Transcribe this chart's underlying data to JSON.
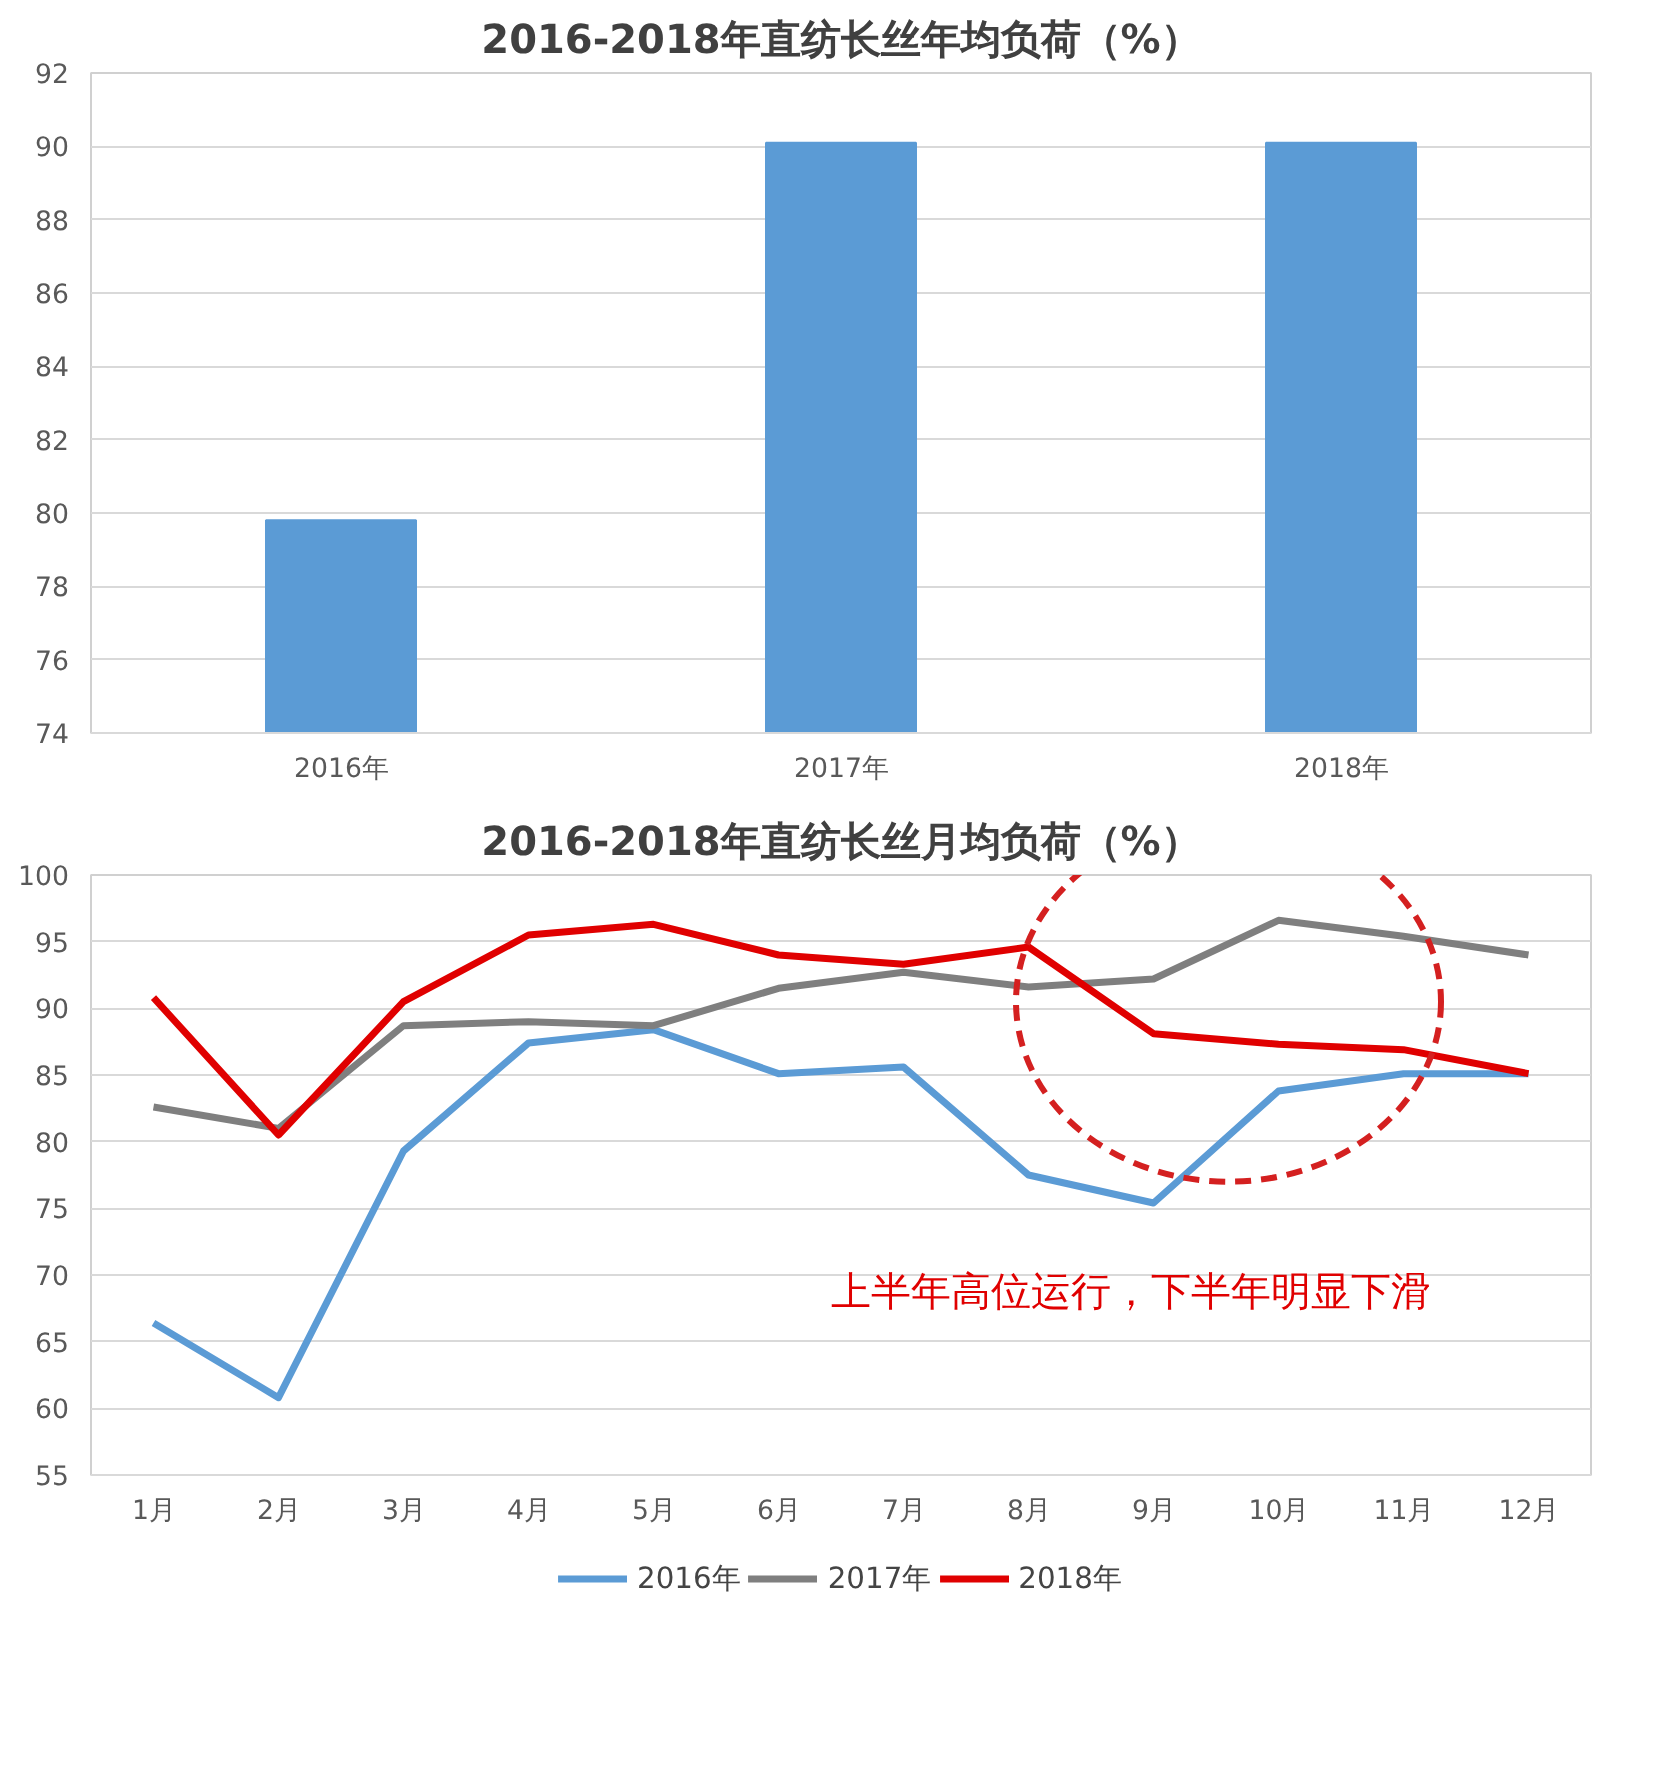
{
  "chart_data": [
    {
      "type": "bar",
      "title": "2016-2018年直纺长丝年均负荷（%）",
      "categories": [
        "2016年",
        "2017年",
        "2018年"
      ],
      "values": [
        79.8,
        90.1,
        90.1
      ],
      "color": "#5b9bd5",
      "ylim": [
        74,
        92
      ],
      "yticks": [
        74,
        76,
        78,
        80,
        82,
        84,
        86,
        88,
        90,
        92
      ],
      "grid": "y"
    },
    {
      "type": "line",
      "title": "2016-2018年直纺长丝月均负荷（%）",
      "categories": [
        "1月",
        "2月",
        "3月",
        "4月",
        "5月",
        "6月",
        "7月",
        "8月",
        "9月",
        "10月",
        "11月",
        "12月"
      ],
      "series": [
        {
          "name": "2016年",
          "color": "#5b9bd5",
          "values": [
            66.4,
            60.8,
            79.3,
            87.4,
            88.4,
            85.1,
            85.6,
            77.5,
            75.4,
            83.8,
            85.1,
            85.1
          ]
        },
        {
          "name": "2017年",
          "color": "#7f7f7f",
          "values": [
            82.6,
            81.0,
            88.7,
            89.0,
            88.7,
            91.5,
            92.7,
            91.6,
            92.2,
            96.6,
            95.4,
            94.0
          ]
        },
        {
          "name": "2018年",
          "color": "#e00000",
          "values": [
            90.8,
            80.5,
            90.5,
            95.5,
            96.3,
            94.0,
            93.3,
            94.6,
            88.1,
            87.3,
            86.9,
            85.1
          ]
        }
      ],
      "ylim": [
        55,
        100
      ],
      "yticks": [
        55,
        60,
        65,
        70,
        75,
        80,
        85,
        90,
        95,
        100
      ],
      "grid": "y",
      "legend": "bottom",
      "marker": "none",
      "line_style": "solid",
      "annotations": [
        "上半年高位运行，下半年明显下滑"
      ]
    }
  ]
}
